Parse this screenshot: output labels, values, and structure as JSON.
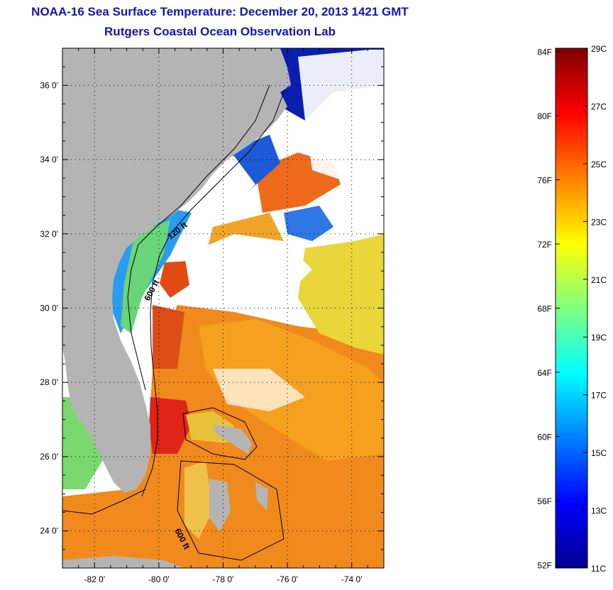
{
  "title": "NOAA-16 Sea Surface Temperature:  December 20, 2013 1421 GMT",
  "subtitle": "Rutgers Coastal Ocean Observation Lab",
  "map": {
    "lon_range": [
      -83,
      -73
    ],
    "lat_range": [
      23,
      37
    ],
    "lat_ticks": [
      {
        "value": 24,
        "label": "24 0'"
      },
      {
        "value": 26,
        "label": "26 0'"
      },
      {
        "value": 28,
        "label": "28 0'"
      },
      {
        "value": 30,
        "label": "30 0'"
      },
      {
        "value": 32,
        "label": "32 0'"
      },
      {
        "value": 34,
        "label": "34 0'"
      },
      {
        "value": 36,
        "label": "36 0'"
      }
    ],
    "lon_ticks": [
      {
        "value": -82,
        "label": "-82 0'"
      },
      {
        "value": -80,
        "label": "-80 0'"
      },
      {
        "value": -78,
        "label": "-78 0'"
      },
      {
        "value": -76,
        "label": "-76 0'"
      },
      {
        "value": -74,
        "label": "-74 0'"
      }
    ],
    "contour_labels": [
      {
        "text": "120 ft"
      },
      {
        "text": "600 ft"
      },
      {
        "text": "600 ft"
      }
    ],
    "colors": {
      "land": "#b4b4b4",
      "cloud": "#ffffff"
    }
  },
  "colorbar": {
    "min_c": 11,
    "max_c": 29,
    "fahrenheit_labels": [
      "84F",
      "80F",
      "76F",
      "72F",
      "68F",
      "64F",
      "60F",
      "56F",
      "52F"
    ],
    "celsius_labels": [
      "29C",
      "27C",
      "25C",
      "23C",
      "21C",
      "19C",
      "17C",
      "15C",
      "13C",
      "11C"
    ],
    "colors": [
      "#00008f",
      "#0000ff",
      "#0080ff",
      "#00ffff",
      "#80ff80",
      "#ffff00",
      "#ff8000",
      "#ff0000",
      "#800000"
    ]
  }
}
